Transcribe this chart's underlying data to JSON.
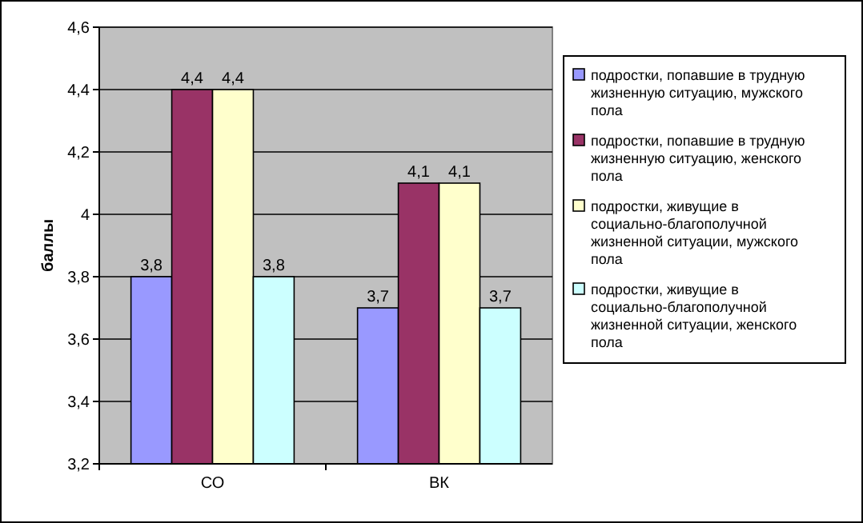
{
  "chart_data": {
    "type": "bar",
    "ylabel": "баллы",
    "categories": [
      "СО",
      "ВК"
    ],
    "series": [
      {
        "name": "подростки, попавшие в трудную жизненную ситуацию, мужского пола",
        "color": "#9999ff",
        "values": [
          3.8,
          3.7
        ],
        "value_labels": [
          "3,8",
          "3,7"
        ]
      },
      {
        "name": "подростки, попавшие в трудную жизненную ситуацию, женского пола",
        "color": "#993366",
        "values": [
          4.4,
          4.1
        ],
        "value_labels": [
          "4,4",
          "4,1"
        ]
      },
      {
        "name": "подростки, живущие в социально-благополучной жизненной ситуации, мужского пола",
        "color": "#ffffcc",
        "values": [
          4.4,
          4.1
        ],
        "value_labels": [
          "4,4",
          "4,1"
        ]
      },
      {
        "name": "подростки, живущие в социально-благополучной жизненной ситуации, женского пола",
        "color": "#ccffff",
        "values": [
          3.8,
          3.7
        ],
        "value_labels": [
          "3,8",
          "3,7"
        ]
      }
    ],
    "ylim": [
      3.2,
      4.6
    ],
    "yticks": [
      {
        "value": 3.2,
        "label": "3,2"
      },
      {
        "value": 3.4,
        "label": "3,4"
      },
      {
        "value": 3.6,
        "label": "3,6"
      },
      {
        "value": 3.8,
        "label": "3,8"
      },
      {
        "value": 4,
        "label": "4"
      },
      {
        "value": 4.2,
        "label": "4,2"
      },
      {
        "value": 4.4,
        "label": "4,4"
      },
      {
        "value": 4.6,
        "label": "4,6"
      }
    ],
    "grid": "y",
    "legend": "right"
  }
}
